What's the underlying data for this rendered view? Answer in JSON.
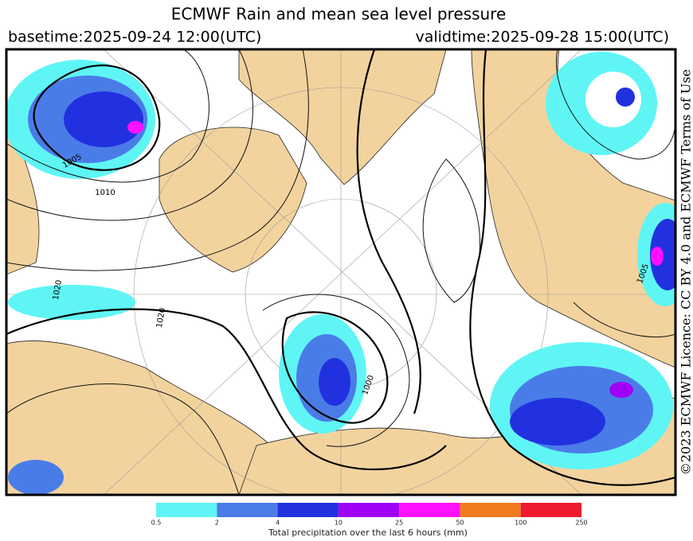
{
  "header": {
    "title": "ECMWF Rain and mean sea level pressure",
    "basetime": "basetime:2025-09-24 12:00(UTC)",
    "validtime": "validtime:2025-09-28 15:00(UTC)"
  },
  "licence": "©2023 ECMWF Licence: CC BY 4.0 and ECMWF Terms of Use",
  "map": {
    "isobar_labels": [
      "1005",
      "1010",
      "1020",
      "1000",
      "1020",
      "1005"
    ]
  },
  "legend": {
    "caption": "Total precipitation over the last 6 hours (mm)",
    "ticks": [
      "0.5",
      "2",
      "4",
      "10",
      "25",
      "50",
      "100",
      "250"
    ],
    "colors": [
      "#5ff5f5",
      "#4a7ce8",
      "#2231e0",
      "#3c0af0",
      "#a000f5",
      "#ff10ff",
      "#f07a20",
      "#f01a30"
    ]
  }
}
